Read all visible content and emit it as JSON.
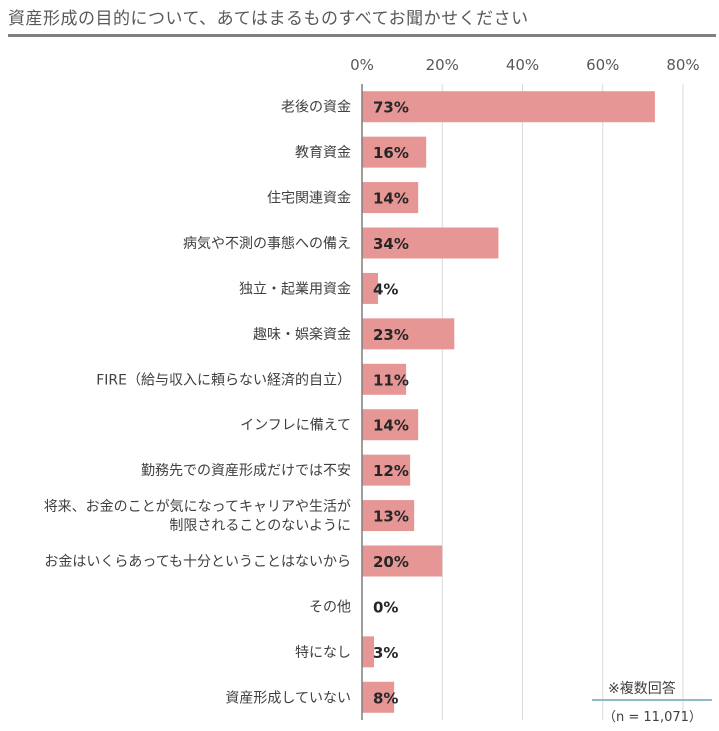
{
  "title": "資産形成の目的について、あてはまるものすべてお聞かせください",
  "chart_data": {
    "type": "bar",
    "orientation": "horizontal",
    "categories": [
      [
        "老後の資金"
      ],
      [
        "教育資金"
      ],
      [
        "住宅関連資金"
      ],
      [
        "病気や不測の事態への備え"
      ],
      [
        "独立・起業用資金"
      ],
      [
        "趣味・娯楽資金"
      ],
      [
        "FIRE（給与収入に頼らない経済的自立）"
      ],
      [
        "インフレに備えて"
      ],
      [
        "勤務先での資産形成だけでは不安"
      ],
      [
        "将来、お金のことが気になってキャリアや生活が",
        "制限されることのないように"
      ],
      [
        "お金はいくらあっても十分ということはないから"
      ],
      [
        "その他"
      ],
      [
        "特になし"
      ],
      [
        "資産形成していない"
      ]
    ],
    "values": [
      73,
      16,
      14,
      34,
      4,
      23,
      11,
      14,
      12,
      13,
      20,
      0,
      3,
      8
    ],
    "value_labels": [
      "73%",
      "16%",
      "14%",
      "34%",
      "4%",
      "23%",
      "11%",
      "14%",
      "12%",
      "13%",
      "20%",
      "0%",
      "3%",
      "8%"
    ],
    "xlim": [
      0,
      80
    ],
    "xticks": [
      0,
      20,
      40,
      60,
      80
    ],
    "xtick_labels": [
      "0%",
      "20%",
      "40%",
      "60%",
      "80%"
    ],
    "xaxis_position": "top",
    "grid": true,
    "bar_color": "#e69695",
    "gridline_color": "#d9d9d9",
    "axis_color": "#7f7f7f"
  },
  "notes": {
    "multiple_answers": "※複数回答",
    "sample_size": "（n = 11,071）"
  }
}
